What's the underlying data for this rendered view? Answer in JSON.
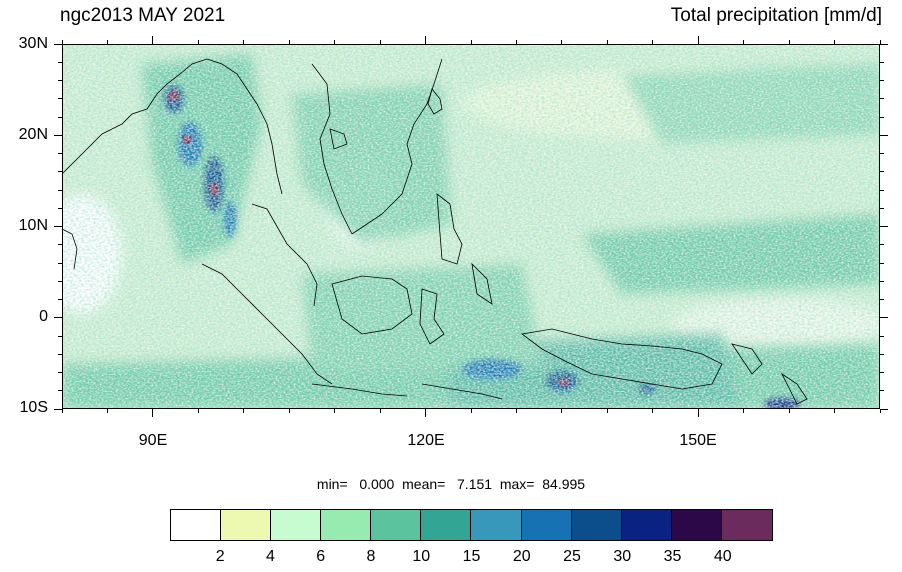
{
  "header": {
    "title_left": "ngc2013 MAY 2021",
    "title_right": "Total precipitation [mm/d]"
  },
  "axes": {
    "lat_labels": [
      "30N",
      "20N",
      "10N",
      "0",
      "10S"
    ],
    "lon_labels": [
      "90E",
      "120E",
      "150E"
    ],
    "lon_range": [
      80,
      170
    ],
    "lat_range": [
      -10,
      30
    ]
  },
  "stats": {
    "min_label": "min=",
    "min_value": "0.000",
    "mean_label": "mean=",
    "mean_value": "7.151",
    "max_label": "max=",
    "max_value": "84.995"
  },
  "colorbar": {
    "labels": [
      "2",
      "4",
      "6",
      "8",
      "10",
      "15",
      "20",
      "25",
      "30",
      "35",
      "40"
    ],
    "colors": [
      "#ffffff",
      "#edf8b1",
      "#c7fcd0",
      "#98ebb0",
      "#5bc39e",
      "#33a594",
      "#3898bb",
      "#1672b3",
      "#0c4d8c",
      "#0a2282",
      "#2d0848",
      "#6b2b5c"
    ]
  }
}
